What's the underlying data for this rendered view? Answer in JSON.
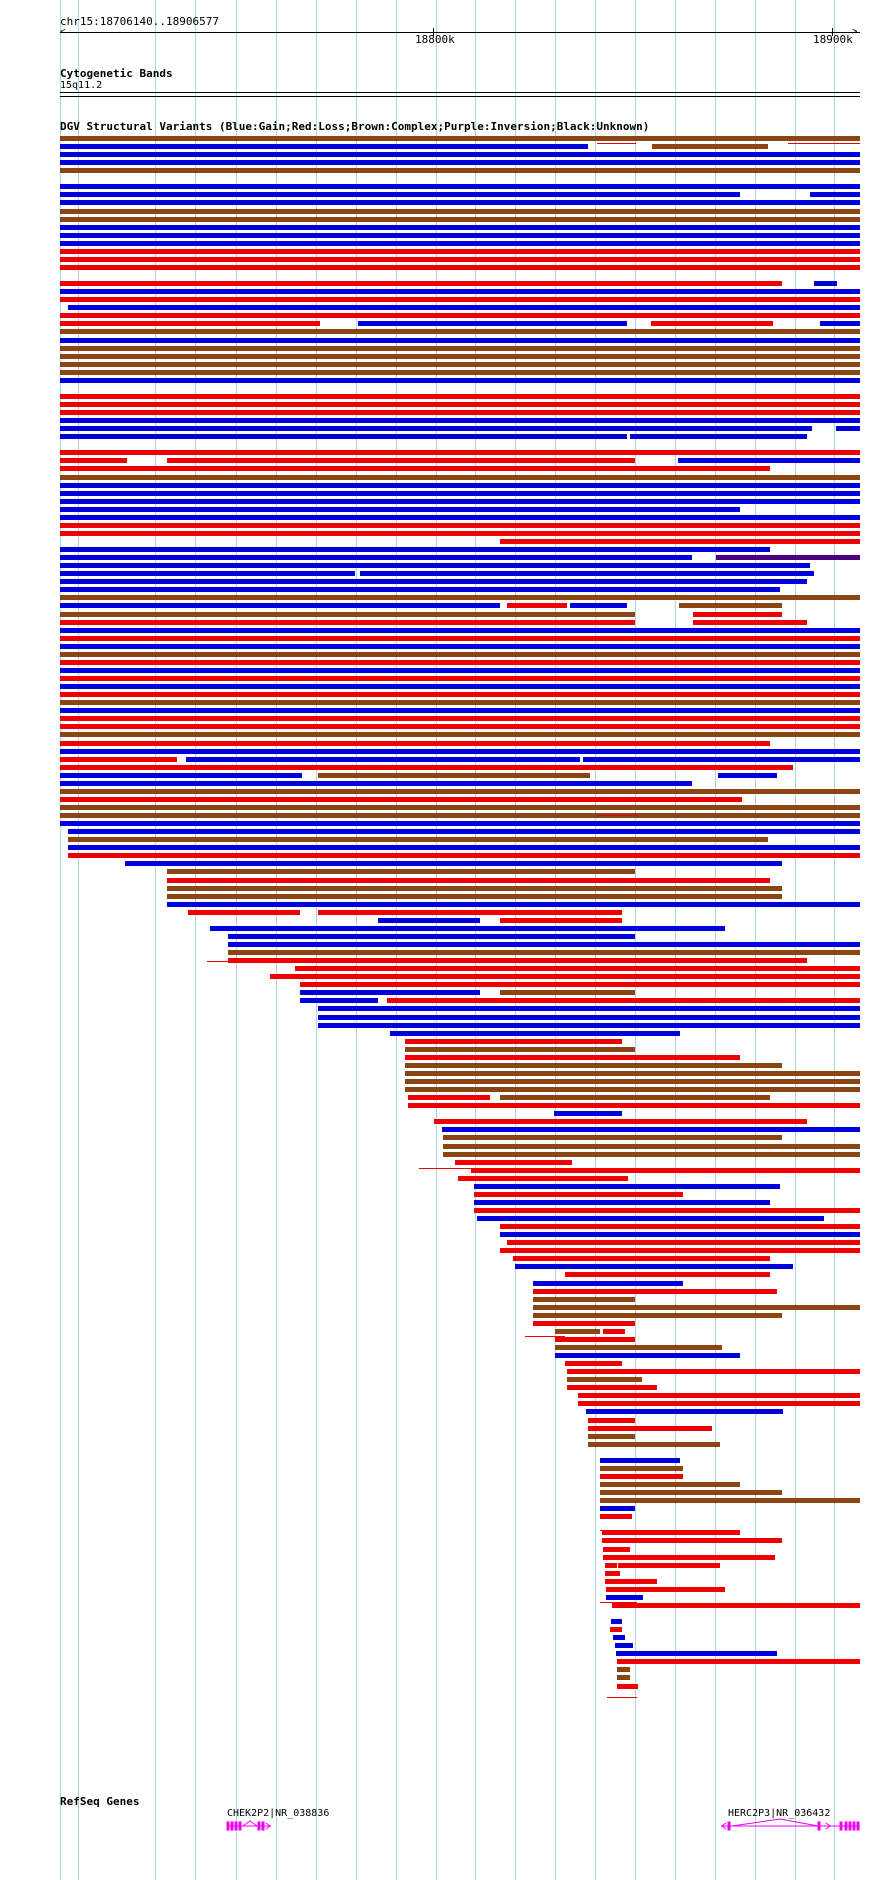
{
  "locus": "chr15:18706140..18906577",
  "ruler": {
    "ticks": [
      "18800k",
      "18900k"
    ]
  },
  "tracks": {
    "cytoband": {
      "title": "Cytogenetic Bands",
      "band": "15q11.2"
    },
    "dgv": {
      "title": "DGV Structural Variants (Blue:Gain;Red:Loss;Brown:Complex;Purple:Inversion;Black:Unknown)"
    },
    "refseq": {
      "title": "RefSeq Genes",
      "genes": [
        "CHEK2P2|NR_038836",
        "HERC2P3|NR_036432"
      ]
    }
  },
  "colors": {
    "gain": "#0000dd",
    "loss": "#ee0000",
    "complex": "#8b4513",
    "inversion": "#4b0082",
    "unknown": "#000000",
    "gene": "#ee00ee",
    "grid": "#a9d3ee"
  }
}
